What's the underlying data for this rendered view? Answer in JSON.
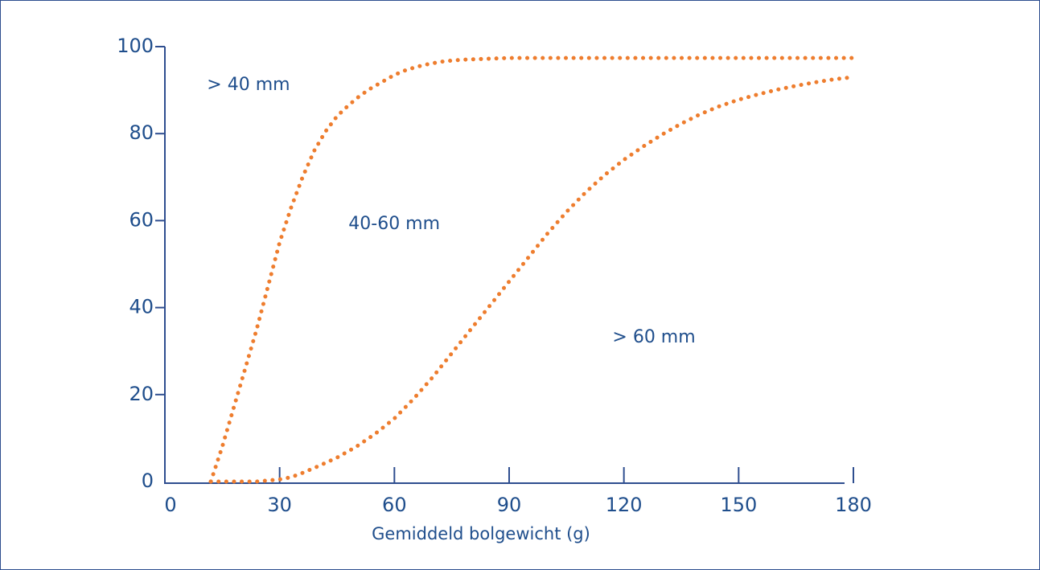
{
  "chart_data": {
    "type": "line",
    "xlabel": "Gemiddeld bolgewicht (g)",
    "ylabel": "",
    "xlim": [
      0,
      180
    ],
    "ylim": [
      0,
      100
    ],
    "x_ticks": [
      0,
      30,
      60,
      90,
      120,
      150,
      180
    ],
    "y_ticks": [
      0,
      20,
      40,
      60,
      80,
      100
    ],
    "grid": false,
    "line_style": "dotted",
    "colors": {
      "axis": "#2e4e8f",
      "text": "#1f4e8c",
      "series": "#ee7d2e"
    },
    "series": [
      {
        "x": [
          12,
          15,
          18,
          21,
          24,
          27,
          30,
          33,
          36,
          39,
          42,
          45,
          48,
          51,
          54,
          57,
          60,
          63,
          66,
          69,
          72,
          75,
          78,
          81,
          84,
          87,
          90,
          95,
          100,
          110,
          120,
          130,
          140,
          150,
          160,
          170,
          180
        ],
        "y": [
          0,
          8,
          17,
          26,
          35,
          45,
          55,
          63,
          70,
          76,
          80.5,
          84,
          86.5,
          88.7,
          90.5,
          92,
          93.5,
          94.6,
          95.4,
          96,
          96.5,
          96.8,
          97,
          97.1,
          97.2,
          97.3,
          97.4,
          97.4,
          97.4,
          97.4,
          97.4,
          97.4,
          97.4,
          97.4,
          97.4,
          97.4,
          97.4
        ]
      },
      {
        "x": [
          12,
          18,
          24,
          30,
          33,
          36,
          40,
          45,
          50,
          55,
          60,
          65,
          70,
          75,
          80,
          85,
          90,
          95,
          100,
          105,
          110,
          115,
          120,
          125,
          130,
          135,
          140,
          145,
          150,
          155,
          160,
          165,
          170,
          175,
          180
        ],
        "y": [
          0,
          0,
          0,
          0.5,
          1,
          2,
          3.5,
          5.5,
          8,
          11,
          14.5,
          19,
          24,
          29.5,
          35,
          40.5,
          46,
          51.5,
          57,
          62,
          66.5,
          70.5,
          74,
          77,
          79.8,
          82.3,
          84.5,
          86.3,
          87.8,
          89,
          90.1,
          91,
          91.8,
          92.5,
          93
        ]
      }
    ],
    "annotations": [
      {
        "text": "> 40 mm",
        "x": 11,
        "y": 90
      },
      {
        "text": "40-60 mm",
        "x": 48,
        "y": 58
      },
      {
        "text": "> 60 mm",
        "x": 117,
        "y": 32
      }
    ]
  }
}
